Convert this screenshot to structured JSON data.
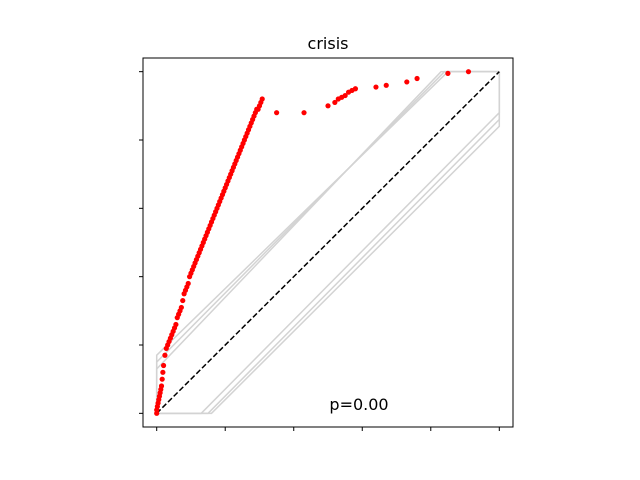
{
  "chart_data": {
    "type": "scatter",
    "title": "crisis",
    "xlabel": "",
    "ylabel": "",
    "xlim": [
      -0.04,
      1.04
    ],
    "ylim": [
      -0.04,
      1.04
    ],
    "xticks": [
      0,
      0.2,
      0.4,
      0.6,
      0.8,
      1.0
    ],
    "yticks": [
      0,
      0.2,
      0.4,
      0.6,
      0.8,
      1.0
    ],
    "tick_labels_visible": false,
    "grid": false,
    "annotation": "p=0.00",
    "reference_line": {
      "x": [
        0,
        1
      ],
      "y": [
        0,
        1
      ],
      "style": "dashed",
      "color": "#000000"
    },
    "bands": [
      {
        "x": [
          0,
          0,
          0.85,
          1
        ],
        "y": [
          0,
          0.17,
          1,
          1
        ]
      },
      {
        "x": [
          0,
          0,
          0.84,
          1
        ],
        "y": [
          0,
          0.15,
          1,
          1
        ]
      },
      {
        "x": [
          0,
          0,
          0.83,
          1
        ],
        "y": [
          0,
          0.13,
          1,
          1
        ]
      },
      {
        "x": [
          0,
          0.13,
          1,
          1
        ],
        "y": [
          0,
          0,
          0.88,
          1
        ]
      },
      {
        "x": [
          0,
          0.15,
          1,
          1
        ],
        "y": [
          0,
          0,
          0.86,
          1
        ]
      },
      {
        "x": [
          0,
          0.16,
          1,
          1
        ],
        "y": [
          0,
          0,
          0.84,
          1
        ]
      }
    ],
    "series": [
      {
        "color": "#ff0000",
        "x": [
          0.0,
          0.0,
          0.002,
          0.004,
          0.006,
          0.008,
          0.01,
          0.012,
          0.014,
          0.016,
          0.018,
          0.02,
          0.024,
          0.028,
          0.032,
          0.036,
          0.04,
          0.044,
          0.048,
          0.052,
          0.056,
          0.06,
          0.064,
          0.068,
          0.072,
          0.076,
          0.08,
          0.084,
          0.088,
          0.092,
          0.096,
          0.1,
          0.104,
          0.108,
          0.112,
          0.116,
          0.12,
          0.124,
          0.128,
          0.132,
          0.136,
          0.14,
          0.144,
          0.148,
          0.152,
          0.156,
          0.16,
          0.164,
          0.168,
          0.172,
          0.176,
          0.18,
          0.184,
          0.188,
          0.192,
          0.196,
          0.2,
          0.204,
          0.208,
          0.212,
          0.216,
          0.22,
          0.224,
          0.228,
          0.232,
          0.236,
          0.24,
          0.244,
          0.248,
          0.252,
          0.256,
          0.26,
          0.264,
          0.268,
          0.272,
          0.276,
          0.28,
          0.284,
          0.288,
          0.292,
          0.296,
          0.3,
          0.304,
          0.308,
          0.35,
          0.43,
          0.5,
          0.52,
          0.53,
          0.54,
          0.55,
          0.56,
          0.57,
          0.58,
          0.64,
          0.67,
          0.73,
          0.76,
          0.85,
          0.91
        ],
        "y": [
          0.0,
          0.01,
          0.02,
          0.03,
          0.04,
          0.05,
          0.06,
          0.07,
          0.08,
          0.1,
          0.12,
          0.14,
          0.17,
          0.19,
          0.2,
          0.21,
          0.22,
          0.23,
          0.24,
          0.25,
          0.26,
          0.28,
          0.29,
          0.3,
          0.31,
          0.33,
          0.35,
          0.36,
          0.37,
          0.38,
          0.4,
          0.41,
          0.42,
          0.43,
          0.44,
          0.45,
          0.46,
          0.47,
          0.48,
          0.49,
          0.5,
          0.51,
          0.52,
          0.53,
          0.54,
          0.55,
          0.56,
          0.57,
          0.58,
          0.59,
          0.6,
          0.61,
          0.62,
          0.63,
          0.64,
          0.65,
          0.66,
          0.67,
          0.68,
          0.69,
          0.7,
          0.71,
          0.72,
          0.73,
          0.74,
          0.75,
          0.76,
          0.77,
          0.78,
          0.79,
          0.8,
          0.81,
          0.82,
          0.83,
          0.84,
          0.85,
          0.86,
          0.87,
          0.88,
          0.89,
          0.89,
          0.9,
          0.91,
          0.92,
          0.88,
          0.88,
          0.9,
          0.91,
          0.92,
          0.925,
          0.93,
          0.94,
          0.945,
          0.95,
          0.955,
          0.96,
          0.97,
          0.98,
          0.995,
          1.0
        ]
      }
    ]
  }
}
